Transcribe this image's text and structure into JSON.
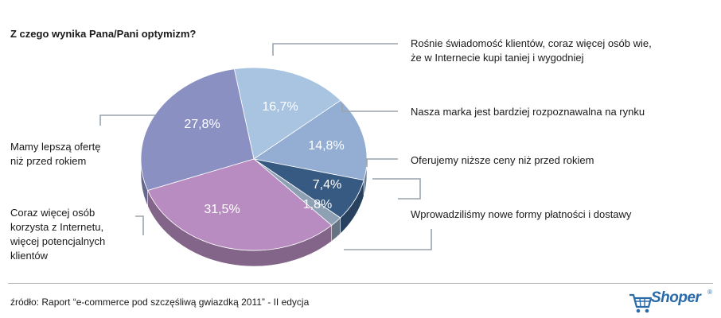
{
  "title": "Z czego wynika Pana/Pani optymizm?",
  "source": "źródło: Raport “e-commerce pod szczęśliwą gwiazdką 2011” - II edycja",
  "logo": {
    "text": "Shoper",
    "reg": "®",
    "icon": "shopping-cart-icon"
  },
  "chart_data": {
    "type": "pie",
    "title": "Z czego wynika Pana/Pani optymizm?",
    "slices": [
      {
        "label_lines": [
          "Rośnie świadomość klientów, coraz więcej osób wie,",
          "że w Internecie kupi taniej i wygodniej"
        ],
        "value": 16.7,
        "value_label": "16,7%",
        "color": "#a8c4e0"
      },
      {
        "label_lines": [
          "Nasza marka jest bardziej rozpoznawalna na rynku"
        ],
        "value": 14.8,
        "value_label": "14,8%",
        "color": "#93aed2"
      },
      {
        "label_lines": [
          "Oferujemy niższe ceny niż przed rokiem"
        ],
        "value": 7.4,
        "value_label": "7,4%",
        "color": "#375a82"
      },
      {
        "label_lines": [
          "Wprowadziliśmy nowe formy płatności i dostawy"
        ],
        "value": 1.8,
        "value_label": "1,8%",
        "color": "#8da0b4"
      },
      {
        "label_lines": [
          "Coraz więcej osób",
          "korzysta z Internetu,",
          "więcej potencjalnych",
          "klientów"
        ],
        "value": 31.5,
        "value_label": "31,5%",
        "color": "#b88cc0"
      },
      {
        "label_lines": [
          "Mamy lepszą ofertę",
          "niż przed rokiem"
        ],
        "value": 27.8,
        "value_label": "27,8%",
        "color": "#8a90c2"
      }
    ]
  }
}
